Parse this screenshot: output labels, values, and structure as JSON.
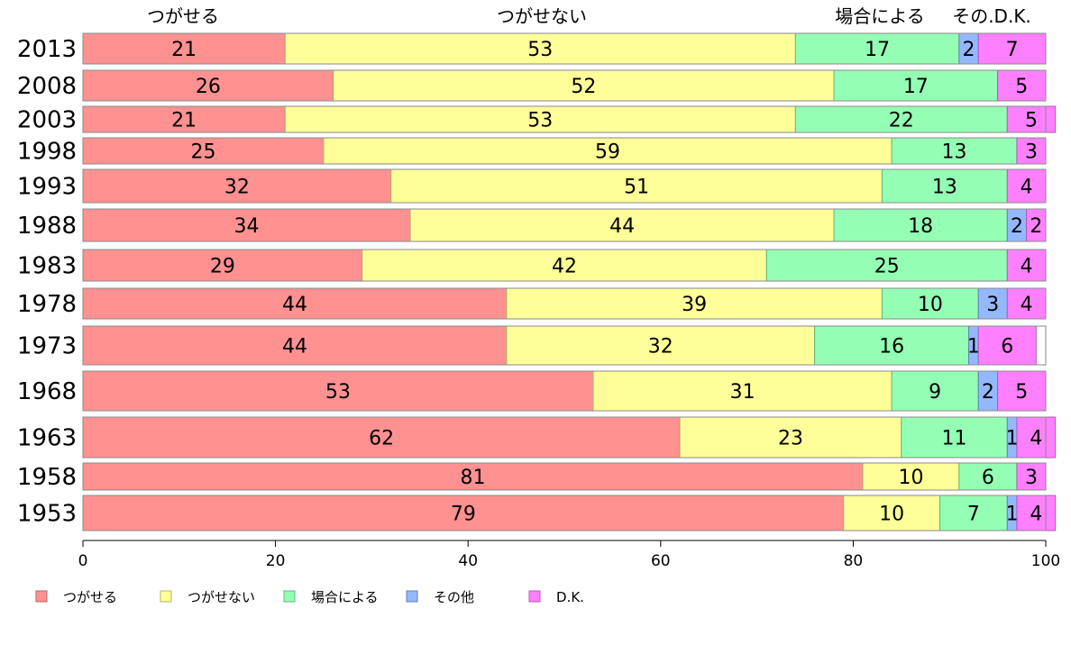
{
  "chart_data": {
    "type": "bar",
    "orientation": "horizontal",
    "stacked": true,
    "title": "",
    "xlabel": "",
    "ylabel": "",
    "xlim": [
      0,
      100
    ],
    "x_ticks": [
      0,
      20,
      40,
      60,
      80,
      100
    ],
    "grid": false,
    "legend_position": "bottom-left",
    "top_labels": [
      "つがせる",
      "つがせない",
      "場合による",
      "その.D.K."
    ],
    "categories": [
      "2013",
      "2008",
      "2003",
      "1998",
      "1993",
      "1988",
      "1983",
      "1978",
      "1973",
      "1968",
      "1963",
      "1958",
      "1953"
    ],
    "series": [
      {
        "name": "つがせる",
        "color": "#ff9191",
        "values": [
          21,
          26,
          21,
          25,
          32,
          34,
          29,
          44,
          44,
          53,
          62,
          81,
          79
        ]
      },
      {
        "name": "つがせない",
        "color": "#ffff99",
        "values": [
          53,
          52,
          53,
          59,
          51,
          44,
          42,
          39,
          32,
          31,
          23,
          10,
          10
        ]
      },
      {
        "name": "場合による",
        "color": "#94ffb4",
        "values": [
          17,
          17,
          22,
          13,
          13,
          18,
          25,
          10,
          16,
          9,
          11,
          6,
          7
        ]
      },
      {
        "name": "その他",
        "color": "#94b8ff",
        "values": [
          2,
          0,
          0,
          0,
          0,
          2,
          0,
          3,
          1,
          2,
          1,
          0,
          1
        ]
      },
      {
        "name": "D.K.",
        "color": "#ff80ff",
        "values": [
          7,
          5,
          5,
          3,
          4,
          2,
          4,
          4,
          6,
          5,
          4,
          3,
          4
        ]
      }
    ]
  }
}
